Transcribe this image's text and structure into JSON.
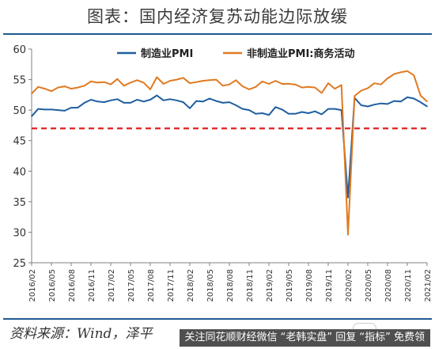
{
  "title": "图表：国内经济复苏动能边际放缓",
  "source": "资料来源：Wind，泽平",
  "banner": "关注同花顺财经微信 “老韩实盘” 回复 “指标” 免费领",
  "chart_data": {
    "type": "line",
    "title": "图表：国内经济复苏动能边际放缓",
    "xlabel": "",
    "ylabel": "",
    "ylim": [
      25,
      60
    ],
    "yticks": [
      25,
      30,
      35,
      40,
      45,
      50,
      55,
      60
    ],
    "x_tick_labels": [
      "2016/02",
      "2016/05",
      "2016/08",
      "2016/11",
      "2017/02",
      "2017/05",
      "2017/08",
      "2017/11",
      "2018/02",
      "2018/05",
      "2018/08",
      "2018/11",
      "2019/02",
      "2019/05",
      "2019/08",
      "2019/11",
      "2020/02",
      "2020/05",
      "2020/08",
      "2020/11",
      "2021/02"
    ],
    "x": [
      "2016/02",
      "2016/03",
      "2016/04",
      "2016/05",
      "2016/06",
      "2016/07",
      "2016/08",
      "2016/09",
      "2016/10",
      "2016/11",
      "2016/12",
      "2017/01",
      "2017/02",
      "2017/03",
      "2017/04",
      "2017/05",
      "2017/06",
      "2017/07",
      "2017/08",
      "2017/09",
      "2017/10",
      "2017/11",
      "2017/12",
      "2018/01",
      "2018/02",
      "2018/03",
      "2018/04",
      "2018/05",
      "2018/06",
      "2018/07",
      "2018/08",
      "2018/09",
      "2018/10",
      "2018/11",
      "2018/12",
      "2019/01",
      "2019/02",
      "2019/03",
      "2019/04",
      "2019/05",
      "2019/06",
      "2019/07",
      "2019/08",
      "2019/09",
      "2019/10",
      "2019/11",
      "2019/12",
      "2020/01",
      "2020/02",
      "2020/03",
      "2020/04",
      "2020/05",
      "2020/06",
      "2020/07",
      "2020/08",
      "2020/09",
      "2020/10",
      "2020/11",
      "2020/12",
      "2021/01",
      "2021/02"
    ],
    "series": [
      {
        "name": "制造业PMI",
        "color": "#1f5fa0",
        "values": [
          49.0,
          50.2,
          50.1,
          50.1,
          50.0,
          49.9,
          50.4,
          50.4,
          51.2,
          51.7,
          51.4,
          51.3,
          51.6,
          51.8,
          51.2,
          51.2,
          51.7,
          51.4,
          51.7,
          52.4,
          51.6,
          51.8,
          51.6,
          51.3,
          50.3,
          51.5,
          51.4,
          51.9,
          51.5,
          51.2,
          51.3,
          50.8,
          50.2,
          50.0,
          49.4,
          49.5,
          49.2,
          50.5,
          50.1,
          49.4,
          49.4,
          49.7,
          49.5,
          49.8,
          49.3,
          50.2,
          50.2,
          50.0,
          35.7,
          52.0,
          50.8,
          50.6,
          50.9,
          51.1,
          51.0,
          51.5,
          51.4,
          52.1,
          51.9,
          51.3,
          50.6
        ]
      },
      {
        "name": "非制造业PMI:商务活动",
        "color": "#e07a21",
        "values": [
          52.7,
          53.8,
          53.5,
          53.1,
          53.7,
          53.9,
          53.5,
          53.7,
          54.0,
          54.7,
          54.5,
          54.6,
          54.2,
          55.1,
          54.0,
          54.5,
          54.9,
          54.5,
          53.4,
          55.4,
          54.3,
          54.8,
          55.0,
          55.3,
          54.4,
          54.6,
          54.8,
          54.9,
          55.0,
          54.0,
          54.2,
          54.9,
          53.9,
          53.4,
          53.8,
          54.7,
          54.3,
          54.8,
          54.3,
          54.3,
          54.2,
          53.7,
          53.8,
          53.7,
          52.8,
          54.4,
          53.5,
          54.1,
          29.6,
          52.3,
          53.2,
          53.6,
          54.4,
          54.2,
          55.2,
          55.9,
          56.2,
          56.4,
          55.7,
          52.4,
          51.4
        ]
      }
    ],
    "reference_line": {
      "value": 47,
      "color": "#e02020",
      "style": "dashed"
    },
    "legend_position": "top",
    "grid": false
  }
}
